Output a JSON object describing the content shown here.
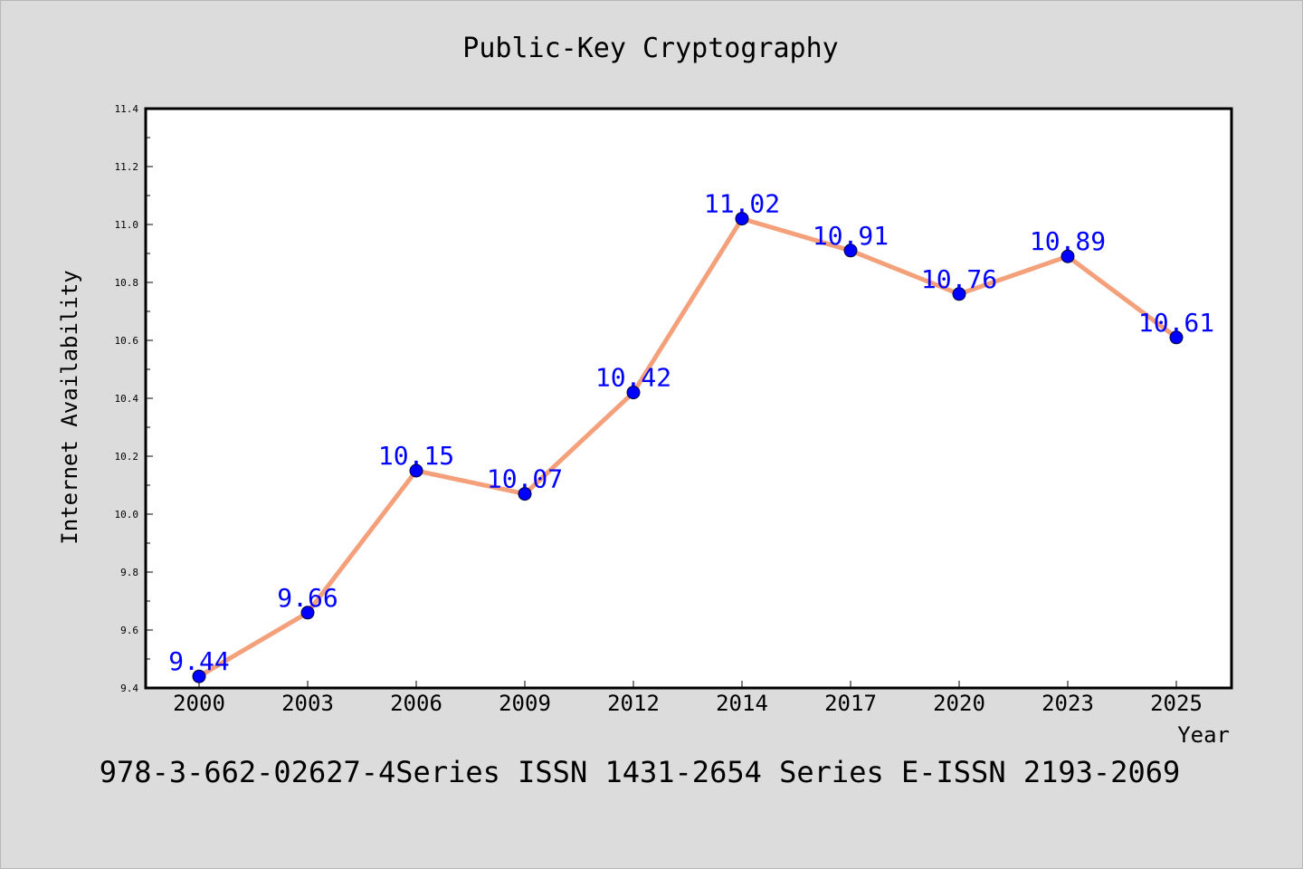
{
  "chart_data": {
    "type": "line",
    "title": "Public-Key Cryptography",
    "xlabel": "Year",
    "ylabel": "Internet Availability",
    "categories": [
      "2000",
      "2003",
      "2006",
      "2009",
      "2012",
      "2014",
      "2017",
      "2020",
      "2023",
      "2025"
    ],
    "series": [
      {
        "values": [
          9.44,
          9.66,
          10.15,
          10.07,
          10.42,
          11.02,
          10.91,
          10.76,
          10.89,
          10.61
        ],
        "line_color": "#f4a07a",
        "marker_color": "#0000ff",
        "label_color": "#0000ff"
      }
    ],
    "data_labels": [
      "9.44",
      "9.66",
      "10.15",
      "10.07",
      "10.42",
      "11.02",
      "10.91",
      "10.76",
      "10.89",
      "10.61"
    ],
    "ylim": [
      9.4,
      11.4
    ],
    "yticks": [
      "9.4",
      "9.6",
      "9.8",
      "10.0",
      "10.2",
      "10.4",
      "10.6",
      "10.8",
      "11.0",
      "11.2",
      "11.4"
    ],
    "grid": false,
    "legend": "none",
    "footer": "978-3-662-02627-4Series ISSN 1431-2654 Series E-ISSN 2193-2069"
  }
}
